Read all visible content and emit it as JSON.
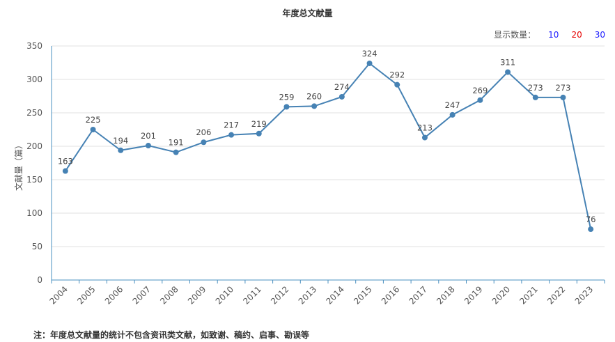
{
  "chart_data": {
    "type": "line",
    "title": "年度总文献量",
    "ylabel": "文献量（篇）",
    "xlabel": "",
    "categories": [
      "2004",
      "2005",
      "2006",
      "2007",
      "2008",
      "2009",
      "2010",
      "2011",
      "2012",
      "2013",
      "2014",
      "2015",
      "2016",
      "2017",
      "2018",
      "2019",
      "2020",
      "2021",
      "2022",
      "2023"
    ],
    "values": [
      163,
      225,
      194,
      201,
      191,
      206,
      217,
      219,
      259,
      260,
      274,
      324,
      292,
      213,
      247,
      269,
      311,
      273,
      273,
      76
    ],
    "ylim": [
      0,
      350
    ],
    "yticks": [
      0,
      50,
      100,
      150,
      200,
      250,
      300,
      350
    ],
    "grid": true,
    "line_color": "#4682b4"
  },
  "count_selector": {
    "label": "显示数量：",
    "options": [
      {
        "label": "10",
        "color": "#1a1aff"
      },
      {
        "label": "20",
        "color": "#e60000"
      },
      {
        "label": "30",
        "color": "#1a1aff"
      }
    ]
  },
  "note": "注：年度总文献量的统计不包含资讯类文献，如致谢、稿约、启事、勘误等"
}
